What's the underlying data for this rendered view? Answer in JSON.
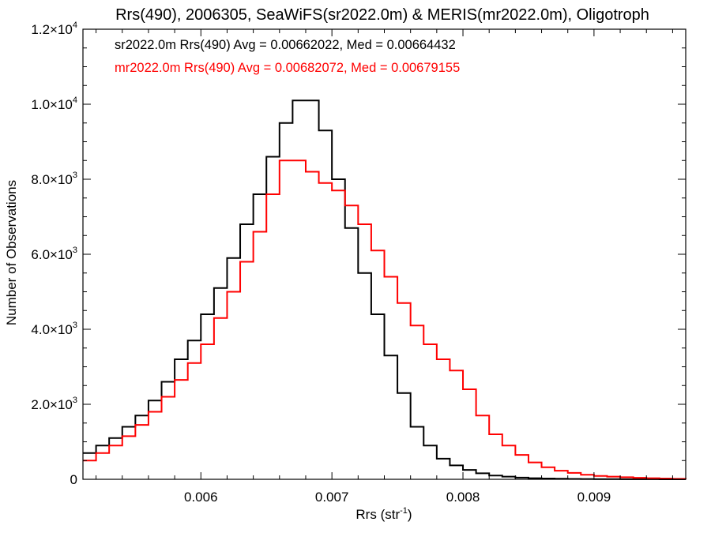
{
  "chart_data": {
    "type": "line",
    "title": "Rrs(490), 2006305, SeaWiFS(sr2022.0m) & MERIS(mr2022.0m), Oligotroph",
    "xlabel": "Rrs (str",
    "xlabel_sup": "-1",
    "xlabel_close": ")",
    "ylabel": "Number of Observations",
    "xlim": [
      0.0051,
      0.0097
    ],
    "ylim": [
      0,
      12000
    ],
    "x_ticks": [
      {
        "value": 0.006,
        "label": "0.006"
      },
      {
        "value": 0.007,
        "label": "0.007"
      },
      {
        "value": 0.008,
        "label": "0.008"
      },
      {
        "value": 0.009,
        "label": "0.009"
      }
    ],
    "y_ticks": [
      {
        "value": 0,
        "label": "0"
      },
      {
        "value": 2000,
        "label": "2.0×10",
        "sup": "3"
      },
      {
        "value": 4000,
        "label": "4.0×10",
        "sup": "3"
      },
      {
        "value": 6000,
        "label": "6.0×10",
        "sup": "3"
      },
      {
        "value": 8000,
        "label": "8.0×10",
        "sup": "3"
      },
      {
        "value": 10000,
        "label": "1.0×10",
        "sup": "4"
      },
      {
        "value": 12000,
        "label": "1.2×10",
        "sup": "4"
      }
    ],
    "grid": false,
    "legend_position": "top-left",
    "series": [
      {
        "legend": "sr2022.0m Rrs(490) Avg = 0.00662022, Med = 0.00664432",
        "color": "#000000",
        "x": [
          0.0051,
          0.0052,
          0.0053,
          0.0054,
          0.0055,
          0.0056,
          0.0057,
          0.0058,
          0.0059,
          0.006,
          0.0061,
          0.0062,
          0.0063,
          0.0064,
          0.0065,
          0.0066,
          0.0067,
          0.0068,
          0.0069,
          0.007,
          0.0071,
          0.0072,
          0.0073,
          0.0074,
          0.0075,
          0.0076,
          0.0077,
          0.0078,
          0.0079,
          0.008,
          0.0081,
          0.0082,
          0.0083,
          0.0084,
          0.0085,
          0.0086,
          0.0087,
          0.0088,
          0.0089,
          0.009,
          0.0091,
          0.0092,
          0.0093,
          0.0094,
          0.0095,
          0.0096,
          0.0097
        ],
        "y": [
          700,
          900,
          1100,
          1400,
          1700,
          2100,
          2600,
          3200,
          3700,
          4400,
          5100,
          5900,
          6800,
          7600,
          8600,
          9500,
          10100,
          10100,
          9300,
          8000,
          6700,
          5500,
          4400,
          3300,
          2300,
          1400,
          900,
          550,
          370,
          250,
          160,
          100,
          70,
          45,
          30,
          20,
          15,
          10,
          7,
          5,
          4,
          3,
          2,
          2,
          1,
          1,
          1
        ]
      },
      {
        "legend": "mr2022.0m Rrs(490) Avg = 0.00682072, Med = 0.00679155",
        "color": "#ff0000",
        "x": [
          0.0051,
          0.0052,
          0.0053,
          0.0054,
          0.0055,
          0.0056,
          0.0057,
          0.0058,
          0.0059,
          0.006,
          0.0061,
          0.0062,
          0.0063,
          0.0064,
          0.0065,
          0.0066,
          0.0067,
          0.0068,
          0.0069,
          0.007,
          0.0071,
          0.0072,
          0.0073,
          0.0074,
          0.0075,
          0.0076,
          0.0077,
          0.0078,
          0.0079,
          0.008,
          0.0081,
          0.0082,
          0.0083,
          0.0084,
          0.0085,
          0.0086,
          0.0087,
          0.0088,
          0.0089,
          0.009,
          0.0091,
          0.0092,
          0.0093,
          0.0094,
          0.0095,
          0.0096,
          0.0097
        ],
        "y": [
          500,
          700,
          900,
          1150,
          1450,
          1800,
          2200,
          2650,
          3100,
          3600,
          4300,
          5000,
          5800,
          6600,
          7600,
          8500,
          8500,
          8200,
          7900,
          7700,
          7300,
          6800,
          6100,
          5400,
          4700,
          4100,
          3600,
          3200,
          2900,
          2400,
          1700,
          1200,
          900,
          650,
          450,
          320,
          230,
          170,
          120,
          90,
          70,
          55,
          40,
          30,
          20,
          12,
          5
        ]
      }
    ]
  }
}
